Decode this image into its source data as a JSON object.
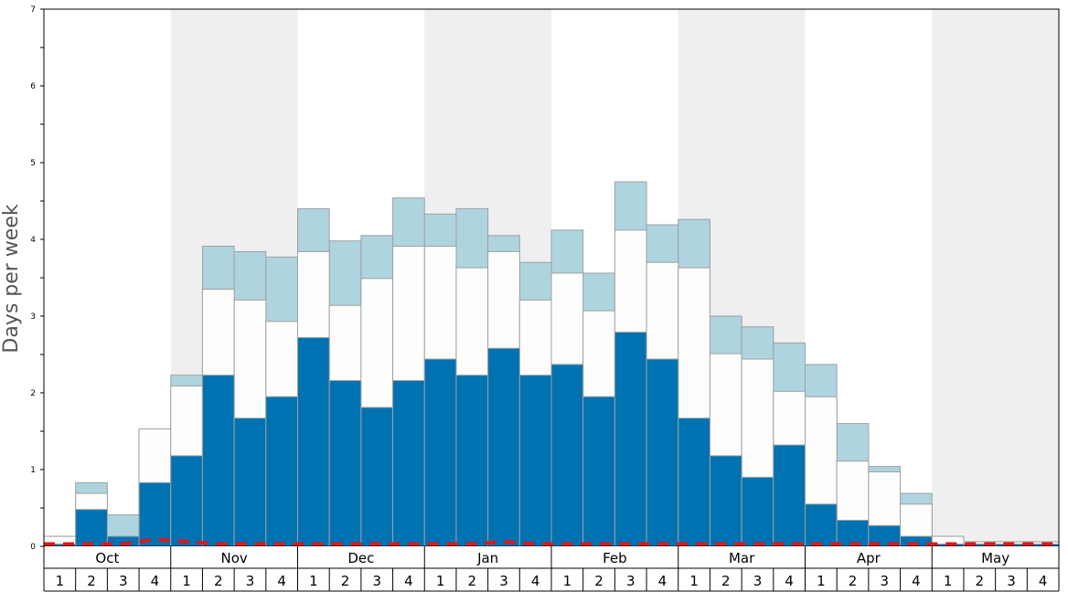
{
  "chart_data": {
    "type": "bar",
    "title": "",
    "ylabel": "Days per week",
    "ylim": [
      0,
      7
    ],
    "y_ticks": [
      "0",
      "1",
      "2",
      "3",
      "4",
      "5",
      "6",
      "7"
    ],
    "months": [
      "Oct",
      "Nov",
      "Dec",
      "Jan",
      "Feb",
      "Mar",
      "Apr",
      "May"
    ],
    "week_labels": [
      "1",
      "2",
      "3",
      "4",
      "1",
      "2",
      "3",
      "4",
      "1",
      "2",
      "3",
      "4",
      "1",
      "2",
      "3",
      "4",
      "1",
      "2",
      "3",
      "4",
      "1",
      "2",
      "3",
      "4",
      "1",
      "2",
      "3",
      "4",
      "1",
      "2",
      "3",
      "4"
    ],
    "stack_levels": [
      {
        "color": "#0072b2",
        "values": [
          0.03,
          0.48,
          0.13,
          0.83,
          1.18,
          2.23,
          1.67,
          1.95,
          2.72,
          2.16,
          1.81,
          2.16,
          2.44,
          2.23,
          2.58,
          2.23,
          2.37,
          1.95,
          2.79,
          2.44,
          1.67,
          1.18,
          0.9,
          1.32,
          0.55,
          0.34,
          0.27,
          0.13,
          0.03,
          0.03,
          0.03,
          0.03
        ]
      },
      {
        "color": "#fdfdfb",
        "values": [
          0.13,
          0.69,
          0.13,
          1.53,
          2.09,
          3.35,
          3.21,
          2.93,
          3.84,
          3.14,
          3.49,
          3.91,
          3.91,
          3.63,
          3.84,
          3.21,
          3.56,
          3.07,
          4.12,
          3.7,
          3.63,
          2.51,
          2.44,
          2.02,
          1.95,
          1.11,
          0.97,
          0.55,
          0.13,
          0.06,
          0.06,
          0.06
        ]
      },
      {
        "color": "#aed4e0",
        "values": [
          0.13,
          0.83,
          0.41,
          1.53,
          2.23,
          3.91,
          3.84,
          3.77,
          4.4,
          3.98,
          4.05,
          4.54,
          4.33,
          4.4,
          4.05,
          3.7,
          4.12,
          3.56,
          4.75,
          4.19,
          4.26,
          3.0,
          2.86,
          2.65,
          2.37,
          1.6,
          1.04,
          0.69,
          0.13,
          0.06,
          0.06,
          0.06
        ]
      }
    ],
    "line": {
      "color": "#d7191c",
      "values": [
        0.03,
        0.03,
        0.03,
        0.09,
        0.06,
        0.03,
        0.03,
        0.03,
        0.03,
        0.03,
        0.03,
        0.03,
        0.03,
        0.03,
        0.06,
        0.03,
        0.03,
        0.03,
        0.03,
        0.03,
        0.03,
        0.03,
        0.03,
        0.03,
        0.03,
        0.03,
        0.03,
        0.03,
        0.03,
        0.03,
        0.03,
        0.03
      ]
    },
    "shaded_months": [
      "Nov",
      "Jan",
      "Mar",
      "May"
    ],
    "grid": false
  }
}
